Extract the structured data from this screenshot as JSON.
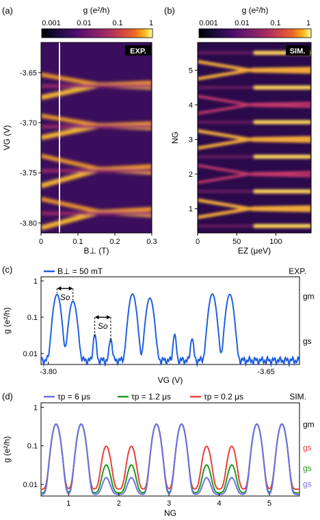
{
  "panels": {
    "a": "(a)",
    "b": "(b)",
    "c": "(c)",
    "d": "(d)"
  },
  "colorbar": {
    "label": "g (e²/h)",
    "ticks": [
      "0.001",
      "0.01",
      "0.1",
      "1"
    ],
    "colormap": "inferno"
  },
  "chart_data": [
    {
      "type": "heatmap",
      "panel": "a",
      "tag": "EXP.",
      "xlabel": "B⊥ (T)",
      "ylabel": "VG (V)",
      "xlim": [
        0,
        0.3
      ],
      "ylim": [
        -3.81,
        -3.62
      ],
      "xticks": [
        "0",
        "0.1",
        "0.2",
        "0.3"
      ],
      "yticks": [
        "-3.65",
        "-3.70",
        "-3.75",
        "-3.80"
      ],
      "marker_line_x": 0.05,
      "color_scale": "log",
      "crossing_pairs": [
        {
          "v_low": -3.805,
          "v_high": -3.776
        },
        {
          "v_low": -3.763,
          "v_high": -3.733
        },
        {
          "v_low": -3.715,
          "v_high": -3.693
        },
        {
          "v_low": -3.675,
          "v_high": -3.652
        }
      ],
      "crossing_field_T": 0.16
    },
    {
      "type": "heatmap",
      "panel": "b",
      "tag": "SIM.",
      "xlabel": "EZ (μeV)",
      "ylabel": "NG",
      "xlim": [
        0,
        145
      ],
      "ylim": [
        0.3,
        5.8
      ],
      "xticks": [
        "0",
        "50",
        "100"
      ],
      "yticks": [
        "1",
        "2",
        "3",
        "4",
        "5"
      ],
      "color_scale": "log",
      "crossing_Ez_ueV": 72
    },
    {
      "type": "line",
      "panel": "c",
      "tag": "EXP.",
      "xlabel": "VG (V)",
      "ylabel": "g (e²/h)",
      "xlim": [
        -3.805,
        -3.627
      ],
      "ylim": [
        0.005,
        1.3
      ],
      "yscale": "log",
      "xticks": [
        "-3.80",
        "-3.65"
      ],
      "yticks": [
        "0.01",
        "0.1",
        "1"
      ],
      "right_labels": [
        "gm",
        "gs"
      ],
      "annotations": [
        "So",
        "So"
      ],
      "series": [
        {
          "name": "B⊥ = 50 mT",
          "color": "#1f5fe0",
          "peaks": [
            {
              "x": -3.794,
              "y": 0.42,
              "w": 0.0026
            },
            {
              "x": -3.783,
              "y": 0.27,
              "w": 0.0026
            },
            {
              "x": -3.768,
              "y": 0.027,
              "w": 0.0012
            },
            {
              "x": -3.757,
              "y": 0.019,
              "w": 0.0012
            },
            {
              "x": -3.742,
              "y": 0.43,
              "w": 0.0026
            },
            {
              "x": -3.73,
              "y": 0.33,
              "w": 0.0026
            },
            {
              "x": -3.713,
              "y": 0.027,
              "w": 0.0012
            },
            {
              "x": -3.701,
              "y": 0.02,
              "w": 0.0012
            },
            {
              "x": -3.687,
              "y": 0.43,
              "w": 0.0026
            },
            {
              "x": -3.675,
              "y": 0.42,
              "w": 0.0026
            }
          ],
          "baseline": 0.0065
        }
      ]
    },
    {
      "type": "line",
      "panel": "d",
      "tag": "SIM.",
      "xlabel": "NG",
      "ylabel": "g (e²/h)",
      "xlim": [
        0.45,
        5.6
      ],
      "ylim": [
        0.005,
        1.3
      ],
      "yscale": "log",
      "xticks": [
        "1",
        "2",
        "3",
        "4",
        "5"
      ],
      "yticks": [
        "0.01",
        "0.1",
        "1"
      ],
      "right_labels": [
        {
          "text": "gm",
          "color": "#000000"
        },
        {
          "text": "gs",
          "color": "#e8403a"
        },
        {
          "text": "gs",
          "color": "#1f9a1f"
        },
        {
          "text": "gs",
          "color": "#6f6fe8"
        }
      ],
      "x_major_peaks": [
        0.75,
        1.25,
        2.75,
        3.25,
        4.75,
        5.25
      ],
      "x_minor_peaks": [
        1.75,
        2.25,
        3.75,
        4.25
      ],
      "peak_width": 0.09,
      "series": [
        {
          "name": "τp = 6 μs",
          "color": "#6f6fe8",
          "major": 0.36,
          "minor": 0.0095,
          "baseline": 0.0055
        },
        {
          "name": "τp = 1.2 μs",
          "color": "#1f9a1f",
          "major": 0.36,
          "minor": 0.026,
          "baseline": 0.006
        },
        {
          "name": "τp = 0.2 μs",
          "color": "#e8403a",
          "major": 0.36,
          "minor": 0.09,
          "baseline": 0.0075
        }
      ]
    }
  ]
}
